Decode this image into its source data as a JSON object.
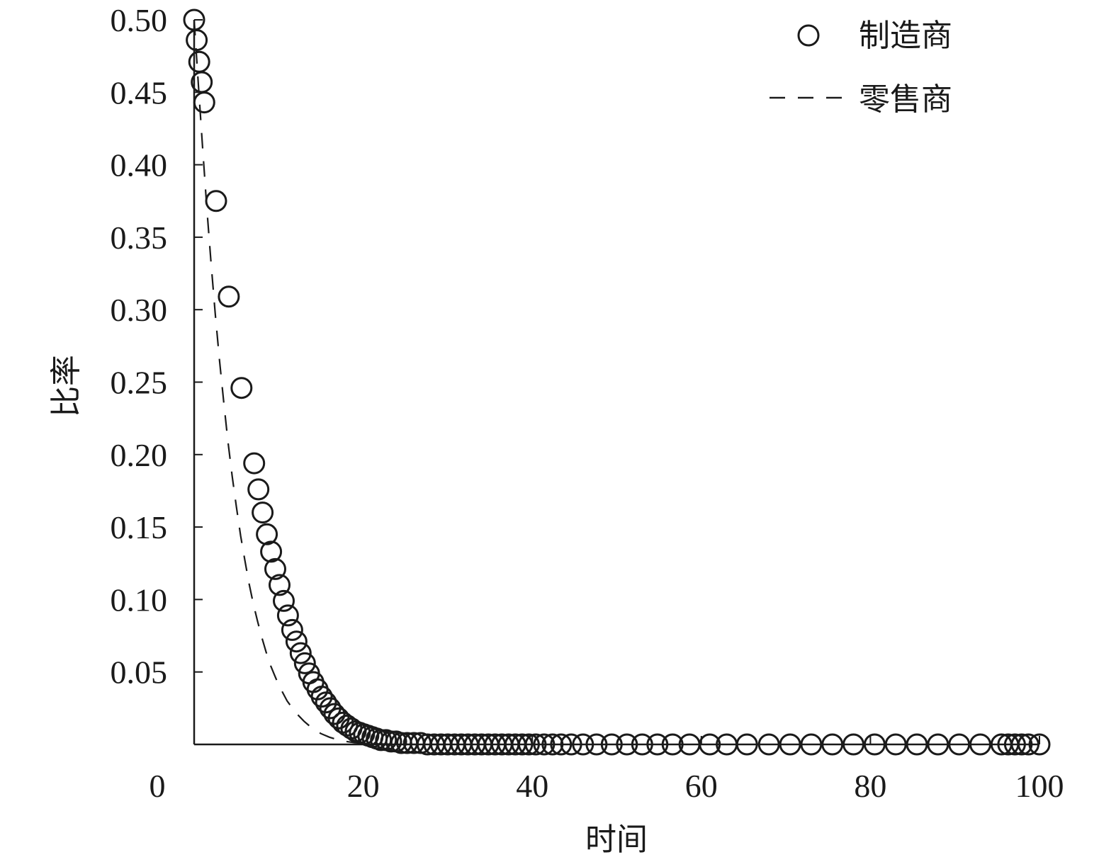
{
  "chart_data": {
    "type": "scatter",
    "xlabel": "时间",
    "ylabel": "比率",
    "xlim": [
      0,
      100
    ],
    "ylim": [
      0,
      0.5
    ],
    "x_ticks": [
      {
        "value": 0,
        "label": "0"
      },
      {
        "value": 20,
        "label": "20"
      },
      {
        "value": 40,
        "label": "40"
      },
      {
        "value": 60,
        "label": "60"
      },
      {
        "value": 80,
        "label": "80"
      },
      {
        "value": 100,
        "label": "100"
      }
    ],
    "y_ticks": [
      {
        "value": 0.05,
        "label": "0.05"
      },
      {
        "value": 0.1,
        "label": "0.10"
      },
      {
        "value": 0.15,
        "label": "0.15"
      },
      {
        "value": 0.2,
        "label": "0.20"
      },
      {
        "value": 0.25,
        "label": "0.25"
      },
      {
        "value": 0.3,
        "label": "0.30"
      },
      {
        "value": 0.35,
        "label": "0.35"
      },
      {
        "value": 0.4,
        "label": "0.40"
      },
      {
        "value": 0.45,
        "label": "0.45"
      },
      {
        "value": 0.5,
        "label": "0.50"
      }
    ],
    "grid": false,
    "legend_position": "top-right",
    "series": [
      {
        "name": "制造商",
        "style": "circle-markers",
        "color": "#1a1a1a",
        "x": [
          0,
          0.3,
          0.6,
          0.9,
          1.2,
          2.6,
          4.1,
          5.6,
          7.1,
          7.6,
          8.1,
          8.6,
          9.1,
          9.6,
          10.1,
          10.6,
          11.1,
          11.6,
          12.1,
          12.6,
          13.1,
          13.6,
          14.1,
          14.6,
          15.1,
          15.6,
          16.1,
          16.6,
          17.1,
          17.6,
          18.1,
          18.6,
          19.1,
          19.6,
          20.1,
          20.6,
          21.1,
          21.6,
          22.1,
          22.7,
          23.3,
          23.9,
          24.5,
          25.2,
          26.0,
          26.8,
          27.6,
          28.4,
          29.2,
          30.0,
          30.8,
          31.6,
          32.4,
          33.2,
          34.0,
          34.8,
          35.6,
          36.4,
          37.2,
          38.0,
          38.8,
          39.6,
          40.4,
          41.4,
          42.4,
          43.4,
          44.6,
          46.0,
          47.6,
          49.4,
          51.2,
          53.0,
          54.8,
          56.6,
          58.6,
          61.0,
          63.0,
          65.4,
          68.0,
          70.5,
          73.0,
          75.5,
          78.0,
          80.5,
          83.0,
          85.5,
          88.0,
          90.5,
          93.0,
          95.5,
          96.3,
          97.1,
          97.9,
          98.7,
          100.0
        ],
        "y": [
          0.5,
          0.486,
          0.471,
          0.457,
          0.443,
          0.375,
          0.309,
          0.246,
          0.194,
          0.176,
          0.16,
          0.145,
          0.133,
          0.121,
          0.11,
          0.099,
          0.089,
          0.079,
          0.071,
          0.063,
          0.056,
          0.049,
          0.043,
          0.038,
          0.033,
          0.029,
          0.025,
          0.021,
          0.018,
          0.015,
          0.013,
          0.011,
          0.009,
          0.008,
          0.007,
          0.006,
          0.005,
          0.004,
          0.003,
          0.003,
          0.002,
          0.002,
          0.001,
          0.001,
          0.001,
          0.001,
          0,
          0,
          0,
          0,
          0,
          0,
          0,
          0,
          0,
          0,
          0,
          0,
          0,
          0,
          0,
          0,
          0,
          0,
          0,
          0,
          0,
          0,
          0,
          0,
          0,
          0,
          0,
          0,
          0,
          0,
          0,
          0,
          0,
          0,
          0,
          0,
          0,
          0,
          0,
          0,
          0,
          0,
          0,
          0,
          0,
          0,
          0,
          0,
          0
        ]
      },
      {
        "name": "零售商",
        "style": "dashed-line",
        "color": "#1a1a1a",
        "x": [
          0,
          0.5,
          1,
          1.5,
          2,
          2.5,
          3,
          3.5,
          4,
          4.5,
          5,
          5.5,
          6,
          6.5,
          7,
          7.5,
          8,
          8.5,
          9,
          9.5,
          10,
          11,
          12,
          13,
          14,
          15,
          16,
          17,
          18,
          19,
          20,
          22,
          24,
          26,
          28,
          30
        ],
        "y": [
          0.5,
          0.455,
          0.412,
          0.37,
          0.332,
          0.297,
          0.265,
          0.236,
          0.209,
          0.185,
          0.164,
          0.144,
          0.127,
          0.111,
          0.097,
          0.085,
          0.074,
          0.064,
          0.055,
          0.048,
          0.041,
          0.03,
          0.022,
          0.016,
          0.011,
          0.0075,
          0.005,
          0.0032,
          0.002,
          0.0012,
          0.0007,
          0.0003,
          0.0001,
          0,
          0,
          0
        ]
      }
    ]
  }
}
